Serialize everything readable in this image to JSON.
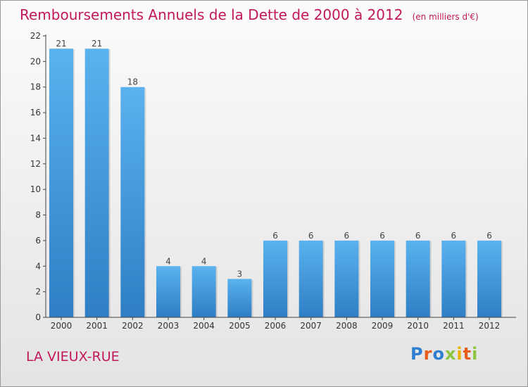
{
  "title": "Remboursements Annuels de la Dette de 2000 à 2012",
  "unit": "(en milliers d'€)",
  "location": "LA VIEUX-RUE",
  "brand": {
    "text": "Proxiti",
    "colors": [
      "#2e7fd1",
      "#e65c1a",
      "#2e7fd1",
      "#8cc63f",
      "#e8b400",
      "#e65c1a",
      "#8cc63f"
    ]
  },
  "colors": {
    "accent": "#c2185b",
    "bar_top": "#5ab2ee",
    "bar_bottom": "#2f7ec4",
    "axis": "#444444"
  },
  "chart_data": {
    "type": "bar",
    "categories": [
      "2000",
      "2001",
      "2002",
      "2003",
      "2004",
      "2005",
      "2006",
      "2007",
      "2008",
      "2009",
      "2010",
      "2011",
      "2012"
    ],
    "values": [
      21,
      21,
      18,
      4,
      4,
      3,
      6,
      6,
      6,
      6,
      6,
      6,
      6
    ],
    "ylim": [
      0,
      22
    ],
    "yticks": [
      0,
      2,
      4,
      6,
      8,
      10,
      12,
      14,
      16,
      18,
      20,
      22
    ],
    "data_labels": true,
    "grid": false,
    "legend": "none"
  }
}
